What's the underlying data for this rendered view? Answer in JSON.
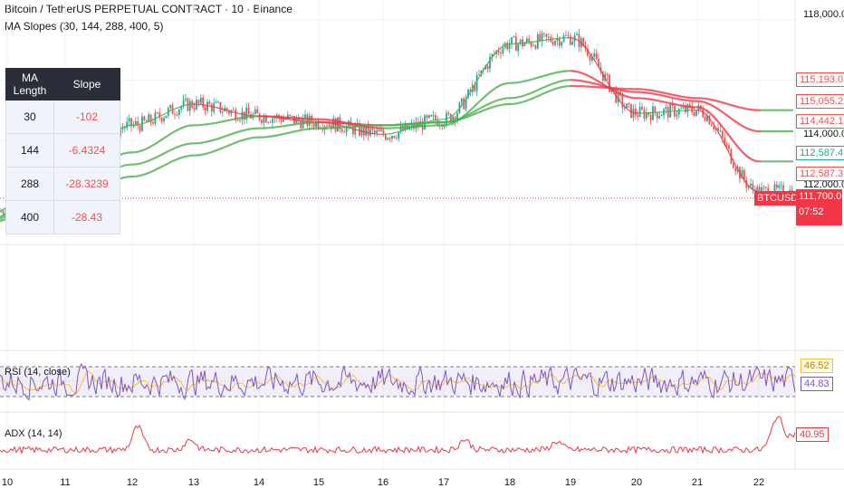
{
  "header": {
    "symbol_title": "Bitcoin / TetherUS PERPETUAL CONTRACT · 10 · Binance",
    "indicator_label": "MA Slopes (30, 144, 288, 400, 5)"
  },
  "ma_table": {
    "headers": [
      "MA Length",
      "Slope"
    ],
    "rows": [
      {
        "length": "30",
        "slope": "-102"
      },
      {
        "length": "144",
        "slope": "-6.4324"
      },
      {
        "length": "288",
        "slope": "-28.3239"
      },
      {
        "length": "400",
        "slope": "-28.43"
      }
    ]
  },
  "price_axis": {
    "labels": [
      "118,000.0",
      "114,000.0",
      "112,000.0"
    ],
    "tags": [
      {
        "value": "115,193.0",
        "color": "#ef5350"
      },
      {
        "value": "115,055.2",
        "color": "#ef5350"
      },
      {
        "value": "114,442.1",
        "color": "#ef5350"
      },
      {
        "value": "112,587.4",
        "color": "#26a69a"
      },
      {
        "value": "112,587.3",
        "color": "#ef5350"
      },
      {
        "value": "111,700.0",
        "color": "#f23645"
      }
    ],
    "symbol_badge": "BTCUSDT.P",
    "countdown": "07:52"
  },
  "rsi": {
    "label": "RSI (14, close)",
    "value_yellow": "46.52",
    "value_purple": "44.83"
  },
  "adx": {
    "label": "ADX (14, 14)",
    "value": "40.95"
  },
  "time_axis": {
    "ticks": [
      "10",
      "11",
      "12",
      "13",
      "14",
      "15",
      "16",
      "17",
      "18",
      "19",
      "20",
      "21",
      "22"
    ]
  },
  "colors": {
    "up": "#26a69a",
    "down": "#ef5350",
    "ma_green": "#4caf50",
    "ma_red": "#f23645",
    "rsi_line": "#7e57c2",
    "rsi_ma": "#fbc02d",
    "adx_line": "#f23645"
  },
  "chart_data": {
    "type": "line",
    "x": [
      "10",
      "11",
      "12",
      "13",
      "14",
      "15",
      "16",
      "17",
      "18",
      "19",
      "20",
      "21",
      "22"
    ],
    "series": [
      {
        "values": [
          111800,
          113100,
          114500,
          115200,
          114800,
          114600,
          114200,
          114700,
          117200,
          117400,
          114900,
          115000,
          112300
        ]
      },
      {
        "values": [
          111600,
          112700,
          113600,
          114500,
          114800,
          114700,
          114400,
          114500,
          115900,
          116300,
          115400,
          115100,
          113300
        ]
      },
      {
        "values": [
          111500,
          112300,
          113200,
          113900,
          114400,
          114600,
          114500,
          114600,
          115400,
          116000,
          115600,
          115300,
          114300
        ]
      },
      {
        "values": [
          111400,
          112000,
          112800,
          113500,
          114100,
          114400,
          114500,
          114600,
          115200,
          115800,
          115700,
          115400,
          115000
        ]
      }
    ],
    "ylim": [
      111000,
      118500
    ]
  }
}
